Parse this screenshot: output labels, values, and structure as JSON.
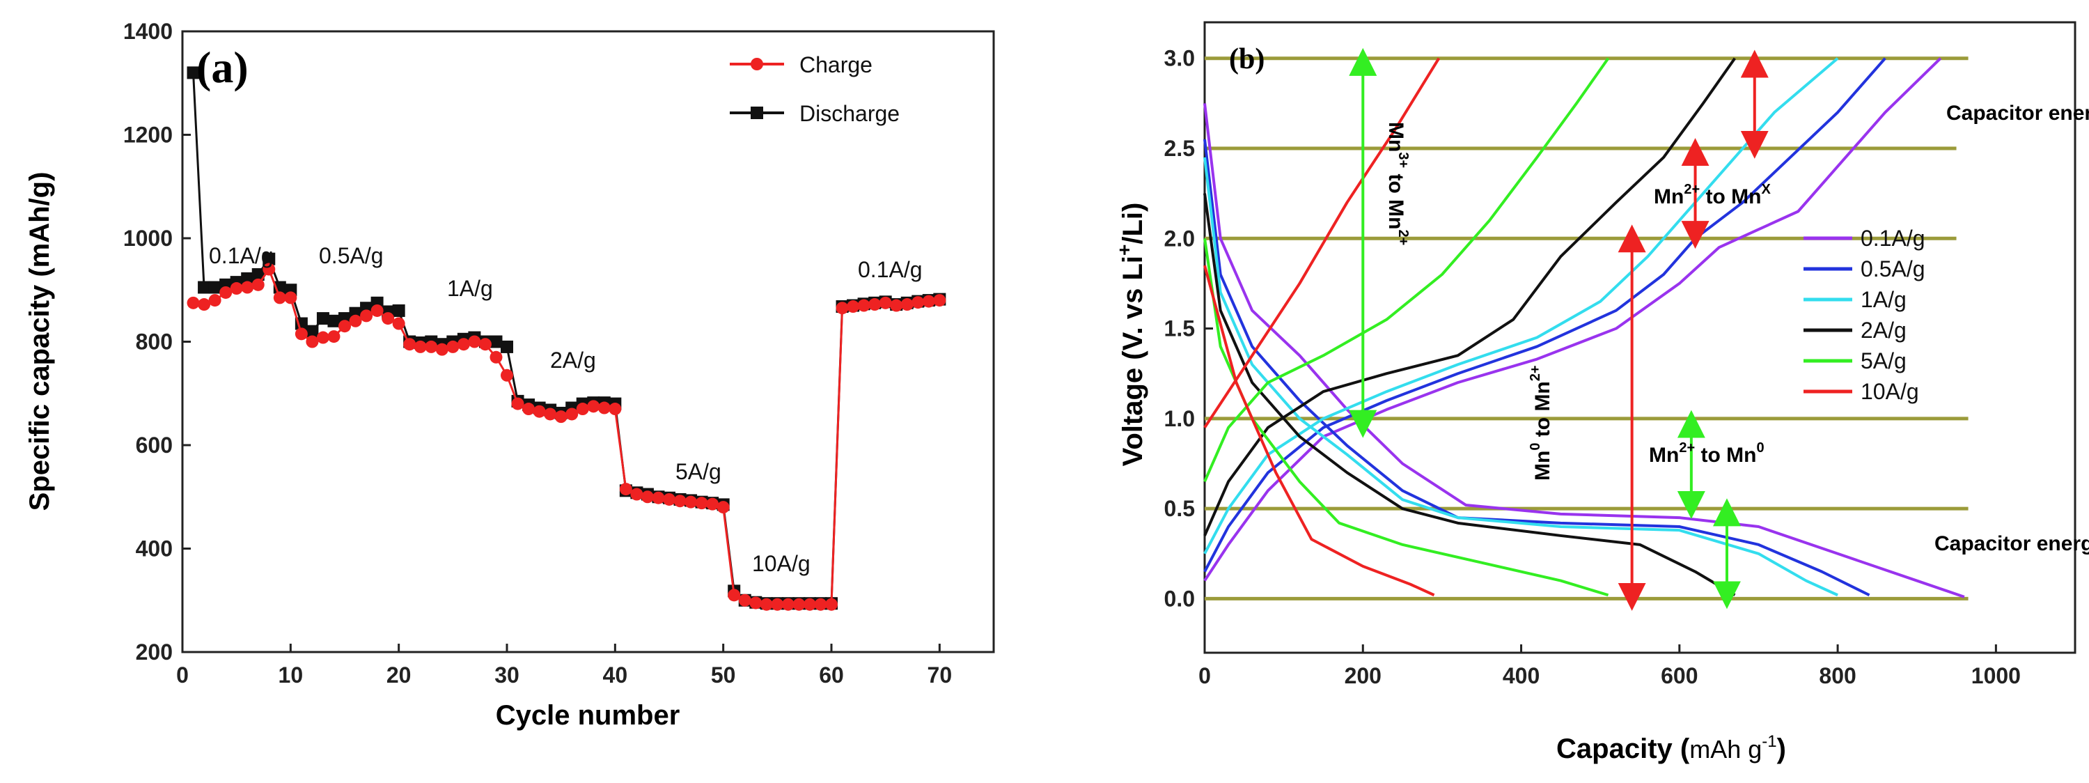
{
  "chart_data": [
    {
      "panel_label": "(a)",
      "type": "scatter",
      "xlabel": "Cycle number",
      "ylabel": "Specific capacity (mAh/g)",
      "xlim": [
        0,
        75
      ],
      "ylim": [
        200,
        1400
      ],
      "xticks": [
        "0",
        "10",
        "20",
        "30",
        "40",
        "50",
        "60",
        "70"
      ],
      "yticks": [
        "200",
        "400",
        "600",
        "800",
        "1000",
        "1200",
        "1400"
      ],
      "legend": [
        "Charge",
        "Discharge"
      ],
      "legend_position": "top-right",
      "series": [
        {
          "name": "Charge",
          "color": "#ee2222",
          "x": [
            1,
            2,
            3,
            4,
            5,
            6,
            7,
            8,
            9,
            10,
            11,
            12,
            13,
            14,
            15,
            16,
            17,
            18,
            19,
            20,
            21,
            22,
            23,
            24,
            25,
            26,
            27,
            28,
            29,
            30,
            31,
            32,
            33,
            34,
            35,
            36,
            37,
            38,
            39,
            40,
            41,
            42,
            43,
            44,
            45,
            46,
            47,
            48,
            49,
            50,
            51,
            52,
            53,
            54,
            55,
            56,
            57,
            58,
            59,
            60,
            61,
            62,
            63,
            64,
            65,
            66,
            67,
            68,
            69,
            70
          ],
          "values": [
            875,
            872,
            880,
            895,
            903,
            905,
            910,
            940,
            885,
            885,
            815,
            800,
            808,
            810,
            830,
            840,
            850,
            860,
            845,
            835,
            795,
            790,
            790,
            785,
            790,
            795,
            800,
            795,
            770,
            735,
            680,
            670,
            665,
            660,
            655,
            660,
            670,
            675,
            672,
            670,
            515,
            505,
            500,
            498,
            495,
            492,
            490,
            488,
            486,
            480,
            310,
            300,
            295,
            292,
            292,
            292,
            292,
            292,
            292,
            292,
            865,
            868,
            870,
            872,
            875,
            870,
            872,
            876,
            878,
            880
          ]
        },
        {
          "name": "Discharge",
          "color": "#111111",
          "x": [
            1,
            2,
            3,
            4,
            5,
            6,
            7,
            8,
            9,
            10,
            11,
            12,
            13,
            14,
            15,
            16,
            17,
            18,
            19,
            20,
            21,
            22,
            23,
            24,
            25,
            26,
            27,
            28,
            29,
            30,
            31,
            32,
            33,
            34,
            35,
            36,
            37,
            38,
            39,
            40,
            41,
            42,
            43,
            44,
            45,
            46,
            47,
            48,
            49,
            50,
            51,
            52,
            53,
            54,
            55,
            56,
            57,
            58,
            59,
            60,
            61,
            62,
            63,
            64,
            65,
            66,
            67,
            68,
            69,
            70
          ],
          "values": [
            1320,
            905,
            905,
            910,
            915,
            922,
            930,
            960,
            905,
            900,
            835,
            820,
            845,
            840,
            845,
            855,
            865,
            875,
            858,
            860,
            800,
            798,
            800,
            795,
            800,
            805,
            808,
            800,
            800,
            790,
            685,
            678,
            672,
            668,
            662,
            672,
            680,
            682,
            682,
            680,
            512,
            508,
            505,
            500,
            498,
            495,
            493,
            490,
            488,
            485,
            318,
            300,
            296,
            294,
            294,
            294,
            294,
            294,
            294,
            294,
            868,
            870,
            873,
            875,
            877,
            872,
            875,
            878,
            880,
            882
          ]
        }
      ],
      "annotations": [
        "0.1A/g",
        "0.5A/g",
        "1A/g",
        "2A/g",
        "5A/g",
        "10A/g",
        "0.1A/g"
      ]
    },
    {
      "panel_label": "(b)",
      "type": "line",
      "xlabel": "Capacity (mAh g-1)",
      "xlabel_main": "Capacity (",
      "xlabel_unit": "mAh g",
      "xlabel_exp": "-1",
      "xlabel_close": ")",
      "ylabel": "Voltage (V. vs Li+/Li)",
      "ylabel_main": "Voltage (V. vs Li",
      "ylabel_sup": "+",
      "ylabel_tail": "/Li)",
      "xlim": [
        0,
        1100
      ],
      "ylim": [
        -0.3,
        3.2
      ],
      "xticks": [
        "0",
        "200",
        "400",
        "600",
        "800",
        "1000"
      ],
      "yticks": [
        "0.0",
        "0.5",
        "1.0",
        "1.5",
        "2.0",
        "2.5",
        "3.0"
      ],
      "legend_position": "right",
      "series": [
        {
          "name": "0.1A/g",
          "color": "#9933ee",
          "discharge_x": [
            0,
            20,
            60,
            120,
            180,
            250,
            330,
            450,
            600,
            700,
            800,
            900,
            960
          ],
          "discharge_y": [
            2.75,
            2.0,
            1.6,
            1.35,
            1.05,
            0.75,
            0.52,
            0.47,
            0.45,
            0.4,
            0.25,
            0.1,
            0.01
          ],
          "charge_x": [
            0,
            30,
            80,
            150,
            230,
            320,
            420,
            520,
            600,
            650,
            700,
            750,
            800,
            860,
            930
          ],
          "charge_y": [
            0.1,
            0.3,
            0.6,
            0.9,
            1.05,
            1.2,
            1.33,
            1.5,
            1.75,
            1.95,
            2.05,
            2.15,
            2.4,
            2.7,
            3.0
          ]
        },
        {
          "name": "0.5A/g",
          "color": "#2233dd",
          "discharge_x": [
            0,
            20,
            60,
            120,
            180,
            250,
            320,
            450,
            600,
            700,
            780,
            840
          ],
          "discharge_y": [
            2.55,
            1.8,
            1.4,
            1.1,
            0.85,
            0.6,
            0.45,
            0.42,
            0.4,
            0.3,
            0.15,
            0.02
          ],
          "charge_x": [
            0,
            30,
            80,
            150,
            230,
            320,
            420,
            520,
            580,
            620,
            680,
            740,
            800,
            860
          ],
          "charge_y": [
            0.15,
            0.4,
            0.7,
            0.95,
            1.1,
            1.25,
            1.4,
            1.6,
            1.8,
            2.0,
            2.2,
            2.45,
            2.7,
            3.0
          ]
        },
        {
          "name": "1A/g",
          "color": "#33ddee",
          "discharge_x": [
            0,
            20,
            60,
            120,
            180,
            250,
            320,
            450,
            600,
            700,
            760,
            800
          ],
          "discharge_y": [
            2.45,
            1.7,
            1.3,
            1.0,
            0.8,
            0.55,
            0.45,
            0.4,
            0.38,
            0.25,
            0.1,
            0.02
          ],
          "charge_x": [
            0,
            30,
            80,
            150,
            230,
            320,
            420,
            500,
            560,
            600,
            650,
            720,
            800
          ],
          "charge_y": [
            0.25,
            0.5,
            0.8,
            1.0,
            1.15,
            1.3,
            1.45,
            1.65,
            1.9,
            2.1,
            2.35,
            2.7,
            3.0
          ]
        },
        {
          "name": "2A/g",
          "color": "#111111",
          "discharge_x": [
            0,
            20,
            60,
            120,
            180,
            250,
            320,
            450,
            550,
            620,
            670
          ],
          "discharge_y": [
            2.25,
            1.6,
            1.2,
            0.9,
            0.7,
            0.5,
            0.42,
            0.35,
            0.3,
            0.15,
            0.02
          ],
          "charge_x": [
            0,
            30,
            80,
            150,
            230,
            320,
            390,
            450,
            520,
            580,
            630,
            670
          ],
          "charge_y": [
            0.35,
            0.65,
            0.95,
            1.15,
            1.25,
            1.35,
            1.55,
            1.9,
            2.2,
            2.45,
            2.75,
            3.0
          ]
        },
        {
          "name": "5A/g",
          "color": "#33ee22",
          "discharge_x": [
            0,
            20,
            60,
            120,
            170,
            250,
            350,
            450,
            510
          ],
          "discharge_y": [
            2.0,
            1.4,
            1.0,
            0.65,
            0.42,
            0.3,
            0.2,
            0.1,
            0.02
          ],
          "charge_x": [
            0,
            30,
            80,
            150,
            230,
            300,
            360,
            420,
            470,
            510
          ],
          "charge_y": [
            0.65,
            0.95,
            1.2,
            1.35,
            1.55,
            1.8,
            2.1,
            2.45,
            2.75,
            3.0
          ]
        },
        {
          "name": "10A/g",
          "color": "#ee2222",
          "discharge_x": [
            0,
            40,
            90,
            135,
            200,
            260,
            290
          ],
          "discharge_y": [
            1.85,
            1.2,
            0.7,
            0.33,
            0.18,
            0.08,
            0.02
          ],
          "charge_x": [
            0,
            60,
            120,
            180,
            240,
            296
          ],
          "charge_y": [
            0.95,
            1.35,
            1.75,
            2.2,
            2.6,
            3.0
          ]
        }
      ],
      "reference_lines_y": [
        0.0,
        0.5,
        1.0,
        2.0,
        2.5,
        3.0
      ],
      "reference_line_color": "#9b9b3a",
      "annotations": {
        "cap_storage": "Capacitor energy storage",
        "cap_discharge": "Capacitor energy discharge",
        "mn2_mnx_a": "Mn",
        "mn2_mnx_b": "2+",
        "mn2_mnx_c": " to Mn",
        "mn2_mnx_d": "X",
        "mn2_mn0_a": "Mn",
        "mn2_mn0_b": "2+",
        "mn2_mn0_c": " to Mn",
        "mn2_mn0_d": "0",
        "mn3_mn2_a": "Mn",
        "mn3_mn2_b": "3+",
        "mn3_mn2_c": " to Mn",
        "mn3_mn2_d": "2+",
        "mn0_mn2_a": "Mn",
        "mn0_mn2_b": "0",
        "mn0_mn2_c": " to Mn",
        "mn0_mn2_d": "2+"
      }
    }
  ]
}
